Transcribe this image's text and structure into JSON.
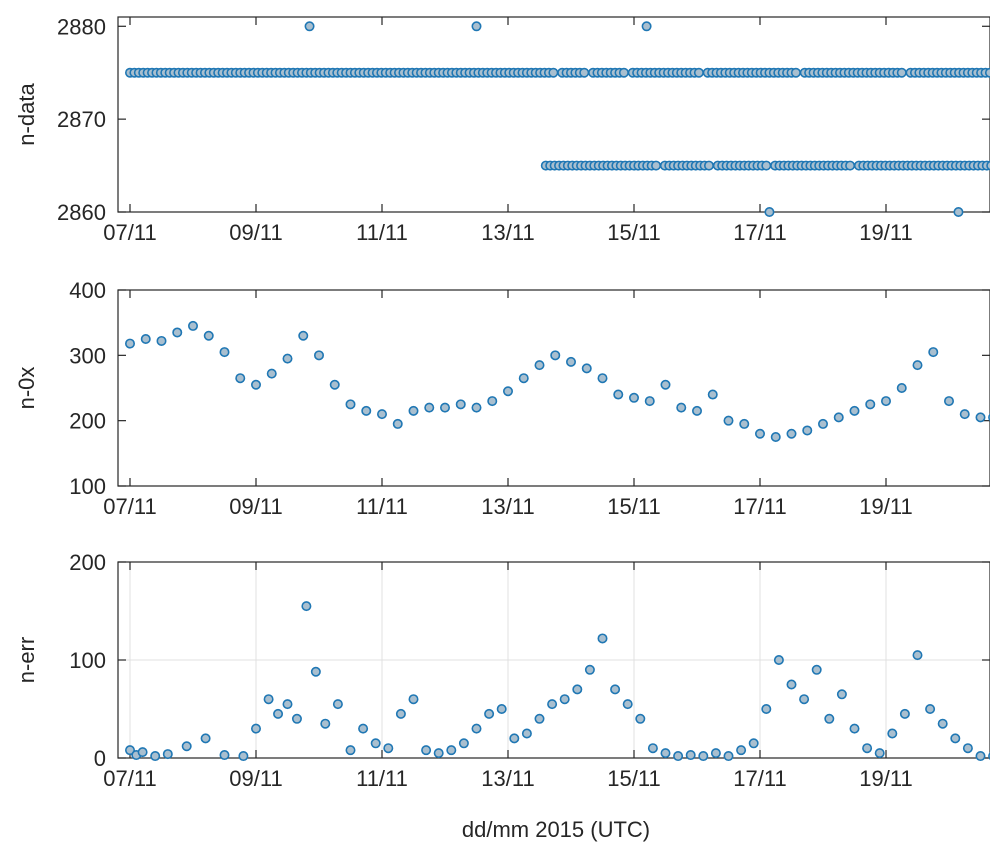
{
  "xlabel": "dd/mm 2015 (UTC)",
  "chart_data": [
    {
      "type": "scatter",
      "ylabel": "n-data",
      "ylim": [
        2860,
        2881
      ],
      "yticks": [
        "2860",
        "2870",
        "2880"
      ],
      "xlim": [
        0,
        13.7
      ],
      "xticks": [
        "07/11",
        "09/11",
        "11/11",
        "13/11",
        "15/11",
        "17/11",
        "19/11"
      ],
      "grid": false,
      "marker_color": "#1f77b4",
      "fill_color": "#a9bfcf",
      "series": [
        {
          "x": [
            2.85,
            5.5,
            8.2
          ],
          "y": [
            2880,
            2880,
            2880
          ]
        },
        {
          "x": [
            10.15,
            13.15
          ],
          "y": [
            2860,
            2860
          ]
        },
        {
          "x_range": [
            0,
            13.7
          ],
          "y": 2875,
          "gaps": [
            [
              6.75,
              6.85
            ],
            [
              7.25,
              7.35
            ],
            [
              7.9,
              7.95
            ],
            [
              8.0,
              8.05
            ],
            [
              9.1,
              9.15
            ],
            [
              10.6,
              10.65
            ],
            [
              12.3,
              12.35
            ]
          ]
        },
        {
          "x_range": [
            6.6,
            13.7
          ],
          "y": 2865,
          "gaps": [
            [
              8.4,
              8.45
            ],
            [
              9.25,
              9.3
            ],
            [
              10.15,
              10.2
            ],
            [
              11.5,
              11.55
            ],
            [
              12.5,
              12.55
            ]
          ]
        }
      ]
    },
    {
      "type": "scatter",
      "ylabel": "n-0x",
      "ylim": [
        100,
        400
      ],
      "yticks": [
        "100",
        "200",
        "300",
        "400"
      ],
      "xlim": [
        0,
        13.7
      ],
      "xticks": [
        "07/11",
        "09/11",
        "11/11",
        "13/11",
        "15/11",
        "17/11",
        "19/11"
      ],
      "grid": false,
      "marker_color": "#1f77b4",
      "fill_color": "#a9bfcf",
      "series": [
        {
          "x": [
            0,
            0.25,
            0.5,
            0.75,
            1.0,
            1.25,
            1.5,
            1.75,
            2.0,
            2.25,
            2.5,
            2.75,
            3.0,
            3.25,
            3.5,
            3.75,
            4.0,
            4.25,
            4.5,
            4.75,
            5.0,
            5.25,
            5.5,
            5.75,
            6.0,
            6.25,
            6.5,
            6.75,
            7.0,
            7.25,
            7.5,
            7.75,
            8.0,
            8.25,
            8.5,
            8.75,
            9.0,
            9.25,
            9.5,
            9.75,
            10.0,
            10.25,
            10.5,
            10.75,
            11.0,
            11.25,
            11.5,
            11.75,
            12.0,
            12.25,
            12.5,
            12.75,
            13.0,
            13.25,
            13.5,
            13.7
          ],
          "y": [
            318,
            325,
            322,
            335,
            345,
            330,
            305,
            265,
            255,
            272,
            295,
            330,
            300,
            255,
            225,
            215,
            210,
            195,
            215,
            220,
            220,
            225,
            220,
            230,
            245,
            265,
            285,
            300,
            290,
            280,
            265,
            240,
            235,
            230,
            255,
            220,
            215,
            240,
            200,
            195,
            180,
            175,
            180,
            185,
            195,
            205,
            215,
            225,
            230,
            250,
            285,
            305,
            230,
            210,
            205,
            205
          ]
        }
      ]
    },
    {
      "type": "scatter",
      "ylabel": "n-err",
      "ylim": [
        0,
        200
      ],
      "yticks": [
        "0",
        "100",
        "200"
      ],
      "xlim": [
        0,
        13.7
      ],
      "xticks": [
        "07/11",
        "09/11",
        "11/11",
        "13/11",
        "15/11",
        "17/11",
        "19/11"
      ],
      "grid": true,
      "marker_color": "#1f77b4",
      "fill_color": "#a9bfcf",
      "series": [
        {
          "x": [
            0,
            0.1,
            0.2,
            0.4,
            0.6,
            0.9,
            1.2,
            1.5,
            1.8,
            2.0,
            2.2,
            2.35,
            2.5,
            2.65,
            2.8,
            2.95,
            3.1,
            3.3,
            3.5,
            3.7,
            3.9,
            4.1,
            4.3,
            4.5,
            4.7,
            4.9,
            5.1,
            5.3,
            5.5,
            5.7,
            5.9,
            6.1,
            6.3,
            6.5,
            6.7,
            6.9,
            7.1,
            7.3,
            7.5,
            7.7,
            7.9,
            8.1,
            8.3,
            8.5,
            8.7,
            8.9,
            9.1,
            9.3,
            9.5,
            9.7,
            9.9,
            10.1,
            10.3,
            10.5,
            10.7,
            10.9,
            11.1,
            11.3,
            11.5,
            11.7,
            11.9,
            12.1,
            12.3,
            12.5,
            12.7,
            12.9,
            13.1,
            13.3,
            13.5,
            13.7
          ],
          "y": [
            8,
            3,
            6,
            2,
            4,
            12,
            20,
            3,
            2,
            30,
            60,
            45,
            55,
            40,
            155,
            88,
            35,
            55,
            8,
            30,
            15,
            10,
            45,
            60,
            8,
            5,
            8,
            15,
            30,
            45,
            50,
            20,
            25,
            40,
            55,
            60,
            70,
            90,
            122,
            70,
            55,
            40,
            10,
            5,
            2,
            3,
            2,
            5,
            2,
            8,
            15,
            50,
            100,
            75,
            60,
            90,
            40,
            65,
            30,
            10,
            5,
            25,
            45,
            105,
            50,
            35,
            20,
            10,
            2,
            2
          ]
        }
      ]
    }
  ]
}
